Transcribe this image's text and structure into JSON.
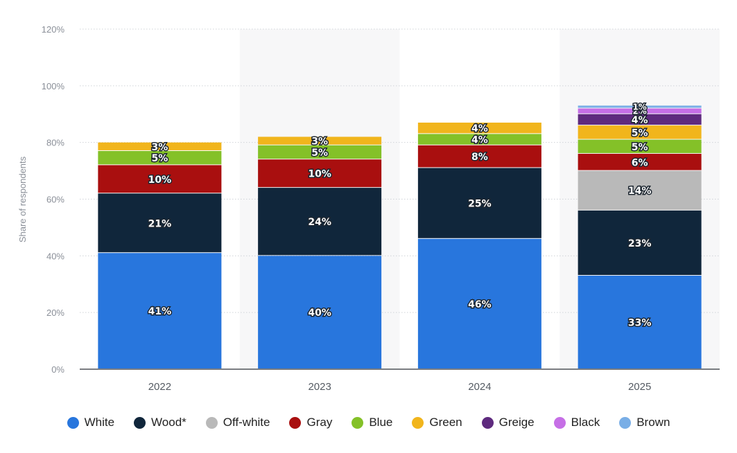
{
  "chart_data": {
    "type": "bar",
    "stacked": true,
    "ylabel": "Share of respondents",
    "ylim": [
      0,
      120
    ],
    "yticks": [
      "0%",
      "20%",
      "40%",
      "60%",
      "80%",
      "100%",
      "120%"
    ],
    "grid": true,
    "legend_position": "bottom",
    "categories": [
      "2022",
      "2023",
      "2024",
      "2025"
    ],
    "series": [
      {
        "name": "White",
        "color": "#2876dd",
        "values": [
          41,
          40,
          46,
          33
        ],
        "labels": [
          "41%",
          "40%",
          "46%",
          "33%"
        ]
      },
      {
        "name": "Wood*",
        "color": "#10263b",
        "values": [
          21,
          24,
          25,
          23
        ],
        "labels": [
          "21%",
          "24%",
          "25%",
          "23%"
        ]
      },
      {
        "name": "Off-white",
        "color": "#b9b9b9",
        "values": [
          0,
          0,
          0,
          14
        ],
        "labels": [
          "",
          "",
          "",
          "14%"
        ]
      },
      {
        "name": "Gray",
        "color": "#a90f0f",
        "values": [
          10,
          10,
          8,
          6
        ],
        "labels": [
          "10%",
          "10%",
          "8%",
          "6%"
        ]
      },
      {
        "name": "Blue",
        "color": "#84c128",
        "values": [
          5,
          5,
          4,
          5
        ],
        "labels": [
          "5%",
          "5%",
          "4%",
          "5%"
        ]
      },
      {
        "name": "Green",
        "color": "#f1b51c",
        "values": [
          3,
          3,
          4,
          5
        ],
        "labels": [
          "3%",
          "3%",
          "4%",
          "5%"
        ]
      },
      {
        "name": "Greige",
        "color": "#5e2a7e",
        "values": [
          0,
          0,
          0,
          4
        ],
        "labels": [
          "",
          "",
          "",
          "4%"
        ]
      },
      {
        "name": "Black",
        "color": "#c66fe6",
        "values": [
          0,
          0,
          0,
          2
        ],
        "labels": [
          "",
          "",
          "",
          "2%"
        ]
      },
      {
        "name": "Brown",
        "color": "#79aee6",
        "values": [
          0,
          0,
          0,
          1
        ],
        "labels": [
          "",
          "",
          "",
          "1%"
        ]
      }
    ]
  }
}
